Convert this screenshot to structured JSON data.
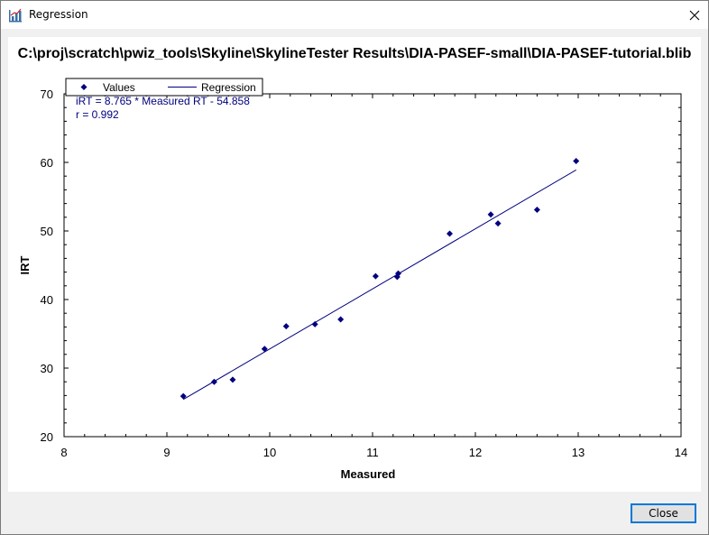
{
  "window": {
    "title": "Regression",
    "close_label": "Close"
  },
  "chart_data": {
    "type": "scatter",
    "title": "C:\\proj\\scratch\\pwiz_tools\\Skyline\\SkylineTester  Results\\DIA-PASEF-small\\DIA-PASEF-tutorial.blib",
    "xlabel": "Measured",
    "ylabel": "IRT",
    "xlim": [
      8,
      14
    ],
    "ylim": [
      20,
      70
    ],
    "x_ticks": [
      8,
      9,
      10,
      11,
      12,
      13,
      14
    ],
    "y_ticks": [
      20,
      30,
      40,
      50,
      60,
      70
    ],
    "grid": false,
    "legend": {
      "placement": "top-left",
      "entries": [
        "Values",
        "Regression"
      ]
    },
    "color": "#00007f",
    "series": [
      {
        "name": "Values",
        "marker": "diamond",
        "x": [
          9.16,
          9.46,
          9.64,
          9.95,
          10.16,
          10.44,
          10.69,
          11.03,
          11.24,
          11.25,
          11.75,
          12.15,
          12.22,
          12.6,
          12.98
        ],
        "y": [
          25.9,
          28.0,
          28.3,
          32.8,
          36.1,
          36.4,
          37.1,
          43.4,
          43.3,
          43.8,
          49.6,
          52.4,
          51.1,
          53.1,
          60.2
        ]
      },
      {
        "name": "Regression",
        "type": "line",
        "x": [
          9.16,
          12.98
        ],
        "y": [
          25.43,
          58.9
        ]
      }
    ],
    "annotations": [
      "iRT = 8.765 * Measured RT - 54.858",
      "r = 0.992"
    ]
  }
}
